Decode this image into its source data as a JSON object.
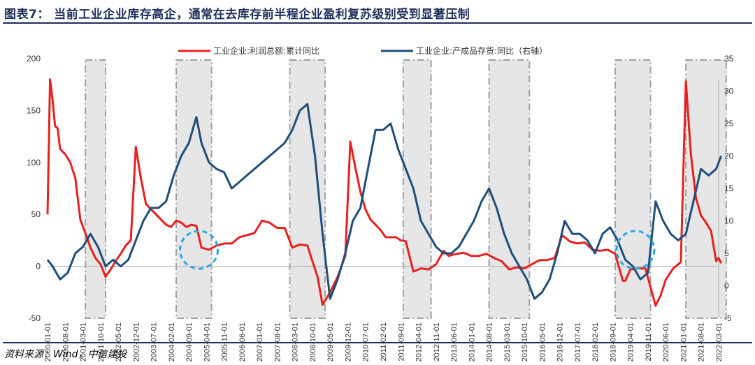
{
  "title": "图表7：  当前工业企业库存高企，通常在去库存前半程企业盈利复苏级别受到显著压制",
  "source": "资料来源：Wind，中信建投",
  "colors": {
    "title": "#1f2e5a",
    "profit": "#e8201e",
    "inventory": "#1f4e79",
    "shade": "#e6e6e6",
    "highlight": "#27a9e1"
  },
  "chart_data": {
    "type": "line",
    "legend_position": "top",
    "x_ticks": [
      "2000-01-01",
      "2000-08-01",
      "2001-03-01",
      "2001-10-01",
      "2002-05-01",
      "2002-12-01",
      "2003-07-01",
      "2004-02-01",
      "2004-09-01",
      "2005-04-01",
      "2005-11-01",
      "2006-06-01",
      "2007-01-01",
      "2007-08-01",
      "2008-03-01",
      "2008-10-01",
      "2009-05-01",
      "2009-12-01",
      "2010-07-01",
      "2011-02-01",
      "2011-09-01",
      "2012-04-01",
      "2012-11-01",
      "2013-06-01",
      "2014-01-01",
      "2014-08-01",
      "2015-03-01",
      "2015-10-01",
      "2016-05-01",
      "2016-12-01",
      "2017-07-01",
      "2018-02-01",
      "2018-09-01",
      "2019-04-01",
      "2019-11-01",
      "2020-06-01",
      "2021-01-01",
      "2021-08-01",
      "2022-03-01"
    ],
    "left_axis": {
      "ticks": [
        -50,
        0,
        50,
        100,
        150,
        200
      ],
      "range": [
        -50,
        200
      ]
    },
    "right_axis": {
      "ticks": [
        -5,
        0,
        5,
        10,
        15,
        20,
        25,
        30,
        35
      ],
      "range": [
        -5,
        35
      ]
    },
    "shaded_periods": [
      [
        "2001-04",
        "2001-12"
      ],
      [
        "2004-04",
        "2005-06"
      ],
      [
        "2008-01",
        "2009-03"
      ],
      [
        "2011-10",
        "2012-09"
      ],
      [
        "2014-08",
        "2015-12"
      ],
      [
        "2018-10",
        "2019-12"
      ],
      [
        "2021-02",
        "2022-06"
      ]
    ],
    "highlight_circles": [
      "2005-01",
      "2019-06"
    ],
    "series": [
      {
        "name": "工业企业:利润总额:累计同比",
        "axis": "left",
        "points": [
          [
            "2000-01",
            50
          ],
          [
            "2000-02",
            180
          ],
          [
            "2000-03",
            160
          ],
          [
            "2000-04",
            135
          ],
          [
            "2000-05",
            133
          ],
          [
            "2000-06",
            113
          ],
          [
            "2000-08",
            108
          ],
          [
            "2000-10",
            100
          ],
          [
            "2000-12",
            85
          ],
          [
            "2001-02",
            45
          ],
          [
            "2001-04",
            32
          ],
          [
            "2001-06",
            18
          ],
          [
            "2001-08",
            8
          ],
          [
            "2001-10",
            2
          ],
          [
            "2001-12",
            -10
          ],
          [
            "2002-02",
            -3
          ],
          [
            "2002-04",
            5
          ],
          [
            "2002-06",
            12
          ],
          [
            "2002-08",
            20
          ],
          [
            "2002-10",
            25
          ],
          [
            "2002-12",
            115
          ],
          [
            "2003-02",
            85
          ],
          [
            "2003-04",
            60
          ],
          [
            "2003-06",
            55
          ],
          [
            "2003-08",
            50
          ],
          [
            "2003-10",
            45
          ],
          [
            "2003-12",
            40
          ],
          [
            "2004-02",
            38
          ],
          [
            "2004-04",
            44
          ],
          [
            "2004-06",
            42
          ],
          [
            "2004-08",
            38
          ],
          [
            "2004-10",
            40
          ],
          [
            "2004-12",
            39
          ],
          [
            "2005-02",
            18
          ],
          [
            "2005-05",
            16
          ],
          [
            "2005-08",
            20
          ],
          [
            "2005-11",
            22
          ],
          [
            "2006-02",
            22
          ],
          [
            "2006-05",
            28
          ],
          [
            "2006-08",
            30
          ],
          [
            "2006-11",
            32
          ],
          [
            "2007-02",
            44
          ],
          [
            "2007-05",
            42
          ],
          [
            "2007-08",
            37
          ],
          [
            "2007-11",
            37
          ],
          [
            "2008-02",
            18
          ],
          [
            "2008-05",
            21
          ],
          [
            "2008-08",
            20
          ],
          [
            "2008-10",
            5
          ],
          [
            "2008-12",
            -10
          ],
          [
            "2009-02",
            -37
          ],
          [
            "2009-05",
            -25
          ],
          [
            "2009-08",
            -10
          ],
          [
            "2009-11",
            10
          ],
          [
            "2010-01",
            120
          ],
          [
            "2010-03",
            95
          ],
          [
            "2010-05",
            72
          ],
          [
            "2010-07",
            55
          ],
          [
            "2010-09",
            45
          ],
          [
            "2010-11",
            40
          ],
          [
            "2011-01",
            35
          ],
          [
            "2011-03",
            28
          ],
          [
            "2011-05",
            28
          ],
          [
            "2011-07",
            28
          ],
          [
            "2011-09",
            25
          ],
          [
            "2011-11",
            24
          ],
          [
            "2012-02",
            -5
          ],
          [
            "2012-05",
            -2
          ],
          [
            "2012-08",
            -3
          ],
          [
            "2012-11",
            2
          ],
          [
            "2013-02",
            15
          ],
          [
            "2013-04",
            10
          ],
          [
            "2013-07",
            12
          ],
          [
            "2013-10",
            13
          ],
          [
            "2014-01",
            10
          ],
          [
            "2014-04",
            10
          ],
          [
            "2014-07",
            12
          ],
          [
            "2014-10",
            8
          ],
          [
            "2015-01",
            5
          ],
          [
            "2015-04",
            -3
          ],
          [
            "2015-07",
            -1
          ],
          [
            "2015-10",
            -2
          ],
          [
            "2016-01",
            2
          ],
          [
            "2016-04",
            6
          ],
          [
            "2016-07",
            6
          ],
          [
            "2016-10",
            8
          ],
          [
            "2017-01",
            30
          ],
          [
            "2017-04",
            24
          ],
          [
            "2017-07",
            22
          ],
          [
            "2017-10",
            23
          ],
          [
            "2018-01",
            16
          ],
          [
            "2018-04",
            15
          ],
          [
            "2018-07",
            16
          ],
          [
            "2018-10",
            12
          ],
          [
            "2019-01",
            -14
          ],
          [
            "2019-02",
            -14
          ],
          [
            "2019-04",
            -3
          ],
          [
            "2019-07",
            -2
          ],
          [
            "2019-10",
            -2
          ],
          [
            "2020-02",
            -38
          ],
          [
            "2020-04",
            -28
          ],
          [
            "2020-06",
            -13
          ],
          [
            "2020-09",
            -2
          ],
          [
            "2020-12",
            4
          ],
          [
            "2021-02",
            178
          ],
          [
            "2021-04",
            108
          ],
          [
            "2021-06",
            66
          ],
          [
            "2021-08",
            49
          ],
          [
            "2021-10",
            42
          ],
          [
            "2021-12",
            34
          ],
          [
            "2022-02",
            5
          ],
          [
            "2022-03",
            8
          ],
          [
            "2022-04",
            3
          ]
        ]
      },
      {
        "name": "工业企业:产成品存货:同比（右轴）",
        "axis": "right",
        "points": [
          [
            "2000-01",
            4
          ],
          [
            "2000-03",
            3
          ],
          [
            "2000-06",
            1
          ],
          [
            "2000-09",
            2
          ],
          [
            "2000-12",
            5
          ],
          [
            "2001-03",
            6
          ],
          [
            "2001-06",
            8
          ],
          [
            "2001-09",
            6
          ],
          [
            "2001-12",
            3
          ],
          [
            "2002-03",
            4
          ],
          [
            "2002-06",
            3
          ],
          [
            "2002-09",
            4
          ],
          [
            "2002-12",
            7
          ],
          [
            "2003-03",
            10
          ],
          [
            "2003-06",
            12
          ],
          [
            "2003-09",
            12
          ],
          [
            "2003-12",
            13
          ],
          [
            "2004-03",
            17
          ],
          [
            "2004-06",
            20
          ],
          [
            "2004-09",
            22
          ],
          [
            "2004-12",
            26
          ],
          [
            "2005-02",
            22
          ],
          [
            "2005-05",
            19
          ],
          [
            "2005-08",
            18
          ],
          [
            "2005-11",
            17.5
          ],
          [
            "2006-02",
            15
          ],
          [
            "2006-05",
            16
          ],
          [
            "2006-08",
            17
          ],
          [
            "2006-11",
            18
          ],
          [
            "2007-02",
            19
          ],
          [
            "2007-05",
            20
          ],
          [
            "2007-08",
            21
          ],
          [
            "2007-11",
            22
          ],
          [
            "2008-02",
            24
          ],
          [
            "2008-05",
            27
          ],
          [
            "2008-08",
            28
          ],
          [
            "2008-11",
            20
          ],
          [
            "2009-02",
            8
          ],
          [
            "2009-05",
            -2
          ],
          [
            "2009-08",
            1
          ],
          [
            "2009-11",
            5
          ],
          [
            "2010-02",
            10
          ],
          [
            "2010-05",
            12
          ],
          [
            "2010-08",
            18
          ],
          [
            "2010-11",
            24
          ],
          [
            "2011-02",
            24
          ],
          [
            "2011-05",
            25
          ],
          [
            "2011-08",
            21
          ],
          [
            "2011-11",
            18
          ],
          [
            "2012-02",
            15
          ],
          [
            "2012-05",
            10
          ],
          [
            "2012-08",
            8
          ],
          [
            "2012-11",
            6
          ],
          [
            "2013-02",
            5
          ],
          [
            "2013-05",
            5
          ],
          [
            "2013-08",
            6
          ],
          [
            "2013-11",
            8
          ],
          [
            "2014-02",
            10
          ],
          [
            "2014-05",
            13
          ],
          [
            "2014-08",
            15
          ],
          [
            "2014-11",
            12
          ],
          [
            "2015-02",
            8
          ],
          [
            "2015-05",
            5
          ],
          [
            "2015-08",
            3
          ],
          [
            "2015-11",
            1
          ],
          [
            "2016-02",
            -2
          ],
          [
            "2016-05",
            -1
          ],
          [
            "2016-08",
            1
          ],
          [
            "2016-11",
            5
          ],
          [
            "2017-02",
            10
          ],
          [
            "2017-05",
            8
          ],
          [
            "2017-08",
            8
          ],
          [
            "2017-11",
            7
          ],
          [
            "2018-02",
            5
          ],
          [
            "2018-05",
            8
          ],
          [
            "2018-08",
            9
          ],
          [
            "2018-11",
            7
          ],
          [
            "2019-02",
            4
          ],
          [
            "2019-05",
            3
          ],
          [
            "2019-08",
            1
          ],
          [
            "2019-11",
            2
          ],
          [
            "2020-02",
            13
          ],
          [
            "2020-05",
            10
          ],
          [
            "2020-08",
            8
          ],
          [
            "2020-11",
            7
          ],
          [
            "2021-02",
            8
          ],
          [
            "2021-05",
            13
          ],
          [
            "2021-08",
            18
          ],
          [
            "2021-11",
            17
          ],
          [
            "2022-02",
            18
          ],
          [
            "2022-04",
            20
          ]
        ]
      }
    ]
  }
}
